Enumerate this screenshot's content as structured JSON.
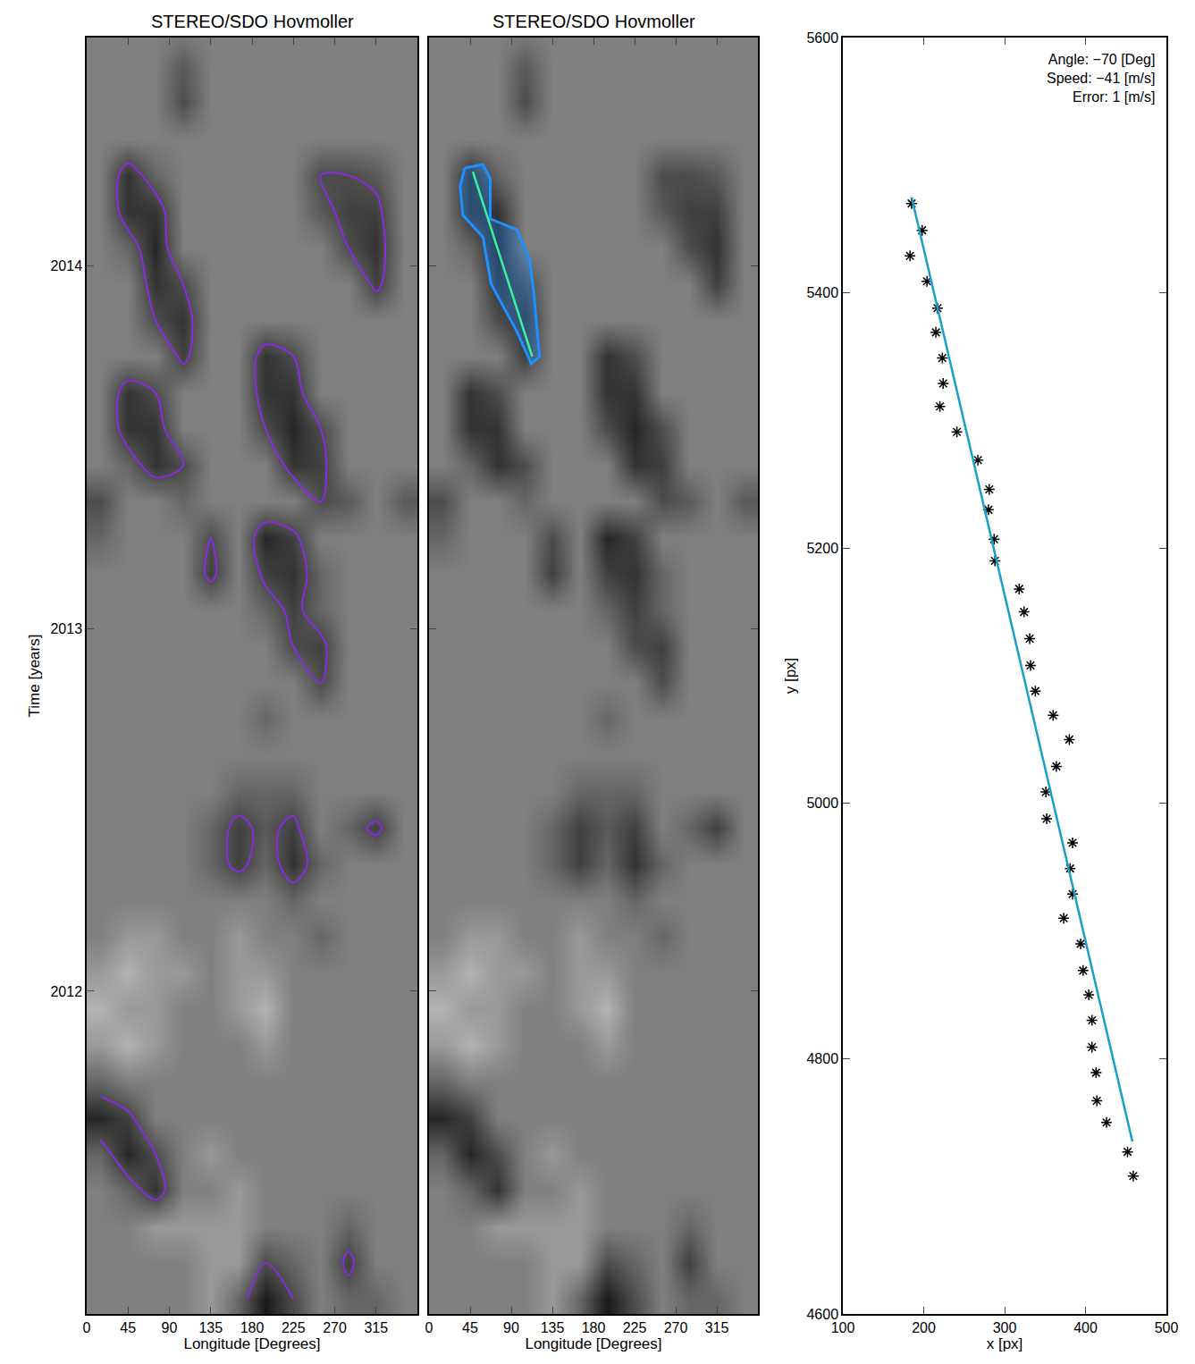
{
  "chart_data": [
    {
      "type": "heatmap",
      "title": "STEREO/SDO Hovmoller",
      "xlabel": "Longitude [Degrees]",
      "ylabel": "Time [years]",
      "x": [
        15,
        45,
        75,
        105,
        135,
        165,
        195,
        225,
        255,
        285,
        315,
        345
      ],
      "y": [
        2011.15,
        2011.25,
        2011.35,
        2011.45,
        2011.55,
        2011.65,
        2011.75,
        2011.85,
        2011.95,
        2012.05,
        2012.15,
        2012.25,
        2012.35,
        2012.45,
        2012.55,
        2012.65,
        2012.75,
        2012.85,
        2012.95,
        2013.05,
        2013.15,
        2013.25,
        2013.35,
        2013.45,
        2013.55,
        2013.65,
        2013.75,
        2013.85,
        2013.95,
        2014.05,
        2014.15,
        2014.25,
        2014.35,
        2014.45,
        2014.55,
        2014.65
      ],
      "z": [
        [
          5,
          5,
          5,
          5,
          6,
          4,
          1,
          3,
          5,
          4,
          4,
          5
        ],
        [
          5,
          5,
          5,
          5,
          6,
          6,
          3,
          4,
          5,
          2.5,
          5,
          5
        ],
        [
          5,
          5,
          6,
          6,
          6,
          6,
          5,
          5,
          5,
          4,
          5,
          5
        ],
        [
          5,
          4,
          2,
          5,
          5,
          6,
          5,
          5,
          5,
          5,
          5,
          5
        ],
        [
          4,
          1.5,
          3,
          5,
          6,
          5,
          5,
          5,
          5,
          5,
          5,
          5
        ],
        [
          1.5,
          2.5,
          5,
          5,
          5,
          5,
          5,
          5,
          5,
          5,
          5,
          5
        ],
        [
          4,
          5,
          5,
          5,
          5,
          5,
          5,
          5,
          5,
          5,
          5,
          5
        ],
        [
          6,
          7,
          6,
          5,
          5,
          5,
          6,
          5,
          5,
          5,
          5,
          5
        ],
        [
          7,
          6,
          6,
          5,
          5,
          6,
          7,
          5,
          5,
          5,
          5,
          5
        ],
        [
          6,
          7,
          6,
          6,
          5,
          6,
          6,
          5,
          5,
          5,
          5,
          5
        ],
        [
          5,
          6,
          6,
          5,
          5,
          6,
          5,
          5,
          4,
          5,
          5,
          5
        ],
        [
          5,
          5,
          5,
          5,
          5,
          5,
          5,
          4,
          5,
          5,
          5,
          5
        ],
        [
          5,
          5,
          5,
          5,
          4,
          2.5,
          4,
          2,
          4,
          5,
          5,
          5
        ],
        [
          5,
          5,
          5,
          5,
          4,
          2.5,
          3.5,
          2.5,
          5,
          4,
          2.5,
          5
        ],
        [
          5,
          5,
          5,
          5,
          5,
          4,
          4,
          4,
          5,
          5,
          5,
          5
        ],
        [
          5,
          5,
          5,
          5,
          5,
          5,
          5,
          5,
          5,
          5,
          5,
          5
        ],
        [
          5,
          5,
          5,
          5,
          5,
          5,
          4,
          5,
          5,
          5,
          5,
          5
        ],
        [
          5,
          5,
          5,
          5,
          5,
          5,
          5,
          5,
          3,
          5,
          5,
          5
        ],
        [
          5,
          5,
          5,
          5,
          5,
          5,
          5,
          3,
          2.5,
          5,
          5,
          5
        ],
        [
          5,
          5,
          5,
          5,
          5,
          5,
          4,
          2.5,
          4,
          5,
          5,
          5
        ],
        [
          5,
          5,
          5,
          5,
          2.5,
          5,
          2.5,
          2,
          4,
          5,
          5,
          5
        ],
        [
          4,
          5,
          5,
          5,
          3,
          5,
          1.5,
          2.5,
          5,
          5,
          5,
          5
        ],
        [
          3,
          5,
          5,
          4,
          5,
          5,
          5,
          5,
          3,
          3.5,
          5,
          3.5
        ],
        [
          5,
          4,
          2,
          3,
          5,
          5,
          5,
          2,
          2.5,
          5,
          5,
          5
        ],
        [
          5,
          2,
          2,
          5,
          5,
          5,
          3,
          1.5,
          3,
          5,
          5,
          5
        ],
        [
          5,
          2,
          3,
          5,
          5,
          5,
          2,
          2,
          5,
          5,
          5,
          5
        ],
        [
          5,
          5,
          5,
          2.5,
          5,
          5,
          2,
          3,
          5,
          5,
          5,
          5
        ],
        [
          5,
          5,
          3,
          2,
          5,
          5,
          5,
          5,
          5,
          5,
          5,
          5
        ],
        [
          5,
          5,
          2,
          3,
          5,
          5,
          5,
          5,
          5,
          5,
          2.5,
          5
        ],
        [
          5,
          4,
          1.5,
          5,
          5,
          5,
          5,
          5,
          5,
          3,
          2,
          5
        ],
        [
          5,
          2,
          2,
          5,
          5,
          5,
          5,
          5,
          3.5,
          2.5,
          2.5,
          5
        ],
        [
          5,
          2,
          4,
          5,
          5,
          5,
          5,
          5,
          3,
          3,
          3.5,
          5
        ],
        [
          5,
          5,
          5,
          5,
          5,
          5,
          5,
          5,
          5,
          5,
          5,
          5
        ],
        [
          5,
          5,
          5,
          3,
          5,
          5,
          5,
          5,
          5,
          5,
          5,
          5
        ],
        [
          5,
          5,
          5,
          3.5,
          5,
          5,
          5,
          5,
          5,
          5,
          5,
          5
        ],
        [
          5,
          5,
          5,
          5,
          5,
          5,
          5,
          5,
          5,
          5,
          5,
          5
        ]
      ],
      "zlim": [
        0,
        10
      ],
      "xlim": [
        0,
        360
      ],
      "xticks": [
        0,
        45,
        90,
        135,
        180,
        225,
        270,
        315
      ],
      "ylim": [
        2011.11,
        2014.63
      ],
      "yticks": [
        2012,
        2013,
        2014
      ],
      "series": [
        {
          "type": "contour",
          "level": 3,
          "color": "#8a2be2"
        }
      ]
    },
    {
      "type": "heatmap",
      "title": "STEREO/SDO Hovmoller",
      "xlabel": "Longitude [Degrees]",
      "tick_labels": "x",
      "x": [
        15,
        45,
        75,
        105,
        135,
        165,
        195,
        225,
        255,
        285,
        315,
        345
      ],
      "y": [
        2011.15,
        2011.25,
        2011.35,
        2011.45,
        2011.55,
        2011.65,
        2011.75,
        2011.85,
        2011.95,
        2012.05,
        2012.15,
        2012.25,
        2012.35,
        2012.45,
        2012.55,
        2012.65,
        2012.75,
        2012.85,
        2012.95,
        2013.05,
        2013.15,
        2013.25,
        2013.35,
        2013.45,
        2013.55,
        2013.65,
        2013.75,
        2013.85,
        2013.95,
        2014.05,
        2014.15,
        2014.25,
        2014.35,
        2014.45,
        2014.55,
        2014.65
      ],
      "z": [
        [
          5,
          5,
          5,
          5,
          6,
          4,
          1,
          3,
          5,
          4,
          4,
          5
        ],
        [
          5,
          5,
          5,
          5,
          6,
          6,
          3,
          4,
          5,
          2.5,
          5,
          5
        ],
        [
          5,
          5,
          6,
          6,
          6,
          6,
          5,
          5,
          5,
          4,
          5,
          5
        ],
        [
          5,
          4,
          2,
          5,
          5,
          6,
          5,
          5,
          5,
          5,
          5,
          5
        ],
        [
          4,
          1.5,
          3,
          5,
          6,
          5,
          5,
          5,
          5,
          5,
          5,
          5
        ],
        [
          1.5,
          2.5,
          5,
          5,
          5,
          5,
          5,
          5,
          5,
          5,
          5,
          5
        ],
        [
          4,
          5,
          5,
          5,
          5,
          5,
          5,
          5,
          5,
          5,
          5,
          5
        ],
        [
          6,
          7,
          6,
          5,
          5,
          5,
          6,
          5,
          5,
          5,
          5,
          5
        ],
        [
          7,
          6,
          6,
          5,
          5,
          6,
          7,
          5,
          5,
          5,
          5,
          5
        ],
        [
          6,
          7,
          6,
          6,
          5,
          6,
          6,
          5,
          5,
          5,
          5,
          5
        ],
        [
          5,
          6,
          6,
          5,
          5,
          6,
          5,
          5,
          4,
          5,
          5,
          5
        ],
        [
          5,
          5,
          5,
          5,
          5,
          5,
          5,
          4,
          5,
          5,
          5,
          5
        ],
        [
          5,
          5,
          5,
          5,
          4,
          2.5,
          4,
          2,
          4,
          5,
          5,
          5
        ],
        [
          5,
          5,
          5,
          5,
          4,
          2.5,
          3.5,
          2.5,
          5,
          4,
          2.5,
          5
        ],
        [
          5,
          5,
          5,
          5,
          5,
          4,
          4,
          4,
          5,
          5,
          5,
          5
        ],
        [
          5,
          5,
          5,
          5,
          5,
          5,
          5,
          5,
          5,
          5,
          5,
          5
        ],
        [
          5,
          5,
          5,
          5,
          5,
          5,
          4,
          5,
          5,
          5,
          5,
          5
        ],
        [
          5,
          5,
          5,
          5,
          5,
          5,
          5,
          5,
          3,
          5,
          5,
          5
        ],
        [
          5,
          5,
          5,
          5,
          5,
          5,
          5,
          3,
          2.5,
          5,
          5,
          5
        ],
        [
          5,
          5,
          5,
          5,
          5,
          5,
          4,
          2.5,
          4,
          5,
          5,
          5
        ],
        [
          5,
          5,
          5,
          5,
          2.5,
          5,
          2.5,
          2,
          4,
          5,
          5,
          5
        ],
        [
          4,
          5,
          5,
          5,
          3,
          5,
          1.5,
          2.5,
          5,
          5,
          5,
          5
        ],
        [
          3,
          5,
          5,
          4,
          5,
          5,
          5,
          5,
          3,
          3.5,
          5,
          3.5
        ],
        [
          5,
          4,
          2,
          3,
          5,
          5,
          5,
          2,
          2.5,
          5,
          5,
          5
        ],
        [
          5,
          2,
          2,
          5,
          5,
          5,
          3,
          1.5,
          3,
          5,
          5,
          5
        ],
        [
          5,
          2,
          3,
          5,
          5,
          5,
          2,
          2,
          5,
          5,
          5,
          5
        ],
        [
          5,
          5,
          5,
          2.5,
          5,
          5,
          2,
          3,
          5,
          5,
          5,
          5
        ],
        [
          5,
          5,
          3,
          2,
          5,
          5,
          5,
          5,
          5,
          5,
          5,
          5
        ],
        [
          5,
          5,
          2,
          3,
          5,
          5,
          5,
          5,
          5,
          5,
          2.5,
          5
        ],
        [
          5,
          4,
          1.5,
          5,
          5,
          5,
          5,
          5,
          5,
          3,
          2,
          5
        ],
        [
          5,
          2,
          2,
          5,
          5,
          5,
          5,
          5,
          3.5,
          2.5,
          2.5,
          5
        ],
        [
          5,
          2,
          4,
          5,
          5,
          5,
          5,
          5,
          3,
          3,
          3.5,
          5
        ],
        [
          5,
          5,
          5,
          5,
          5,
          5,
          5,
          5,
          5,
          5,
          5,
          5
        ],
        [
          5,
          5,
          5,
          3,
          5,
          5,
          5,
          5,
          5,
          5,
          5,
          5
        ],
        [
          5,
          5,
          5,
          3.5,
          5,
          5,
          5,
          5,
          5,
          5,
          5,
          5
        ],
        [
          5,
          5,
          5,
          5,
          5,
          5,
          5,
          5,
          5,
          5,
          5,
          5
        ]
      ],
      "zlim": [
        0,
        10
      ],
      "xlim": [
        0,
        360
      ],
      "xticks": [
        0,
        45,
        90,
        135,
        180,
        225,
        270,
        315
      ],
      "ylim": [
        2011.11,
        2014.63
      ],
      "yticks": [
        2012,
        2013,
        2014
      ],
      "series": [
        {
          "type": "polygon",
          "color": "#1e90ff",
          "x": [
            39,
            59,
            67,
            67,
            96,
            110,
            115,
            121,
            112,
            96,
            68,
            59,
            37,
            34,
            39
          ],
          "y": [
            2014.27,
            2014.28,
            2014.24,
            2014.13,
            2014.1,
            2014.02,
            2013.92,
            2013.75,
            2013.73,
            2013.82,
            2013.95,
            2014.08,
            2014.14,
            2014.22,
            2014.27
          ]
        },
        {
          "type": "line",
          "color": "#3cf0a0",
          "x": [
            48,
            113
          ],
          "y": [
            2014.26,
            2013.75
          ]
        }
      ]
    },
    {
      "type": "scatter",
      "xlabel": "x [px]",
      "ylabel": "y [px]",
      "xlim": [
        100,
        500
      ],
      "xticks": [
        100,
        200,
        300,
        400,
        500
      ],
      "ylim": [
        4600,
        5600
      ],
      "yticks": [
        4600,
        4800,
        5000,
        5200,
        5400,
        5600
      ],
      "annotations": [
        "Angle: −70 [Deg]",
        "Speed: −41 [m/s]",
        "Error: 1 [m/s]"
      ],
      "series": [
        {
          "type": "scatter",
          "marker": "asterisk",
          "color": "#000000",
          "x": [
            185,
            198,
            183,
            204,
            217,
            215,
            223,
            224,
            220,
            241,
            267,
            281,
            280,
            287,
            288,
            318,
            324,
            331,
            332,
            338,
            360,
            380,
            364,
            351,
            352,
            384,
            381,
            384,
            373,
            394,
            397,
            404,
            408,
            408,
            413,
            414,
            426,
            452,
            459
          ],
          "y": [
            5470,
            5449,
            5429,
            5409,
            5388,
            5369,
            5349,
            5329,
            5311,
            5291,
            5269,
            5246,
            5230,
            5207,
            5190,
            5168,
            5150,
            5129,
            5108,
            5088,
            5069,
            5050,
            5029,
            5009,
            4988,
            4969,
            4949,
            4929,
            4910,
            4890,
            4869,
            4850,
            4830,
            4809,
            4789,
            4767,
            4750,
            4727,
            4708
          ]
        },
        {
          "type": "line",
          "color": "#1aa0c8",
          "x": [
            185,
            458
          ],
          "y": [
            5475,
            4735
          ]
        }
      ]
    }
  ]
}
